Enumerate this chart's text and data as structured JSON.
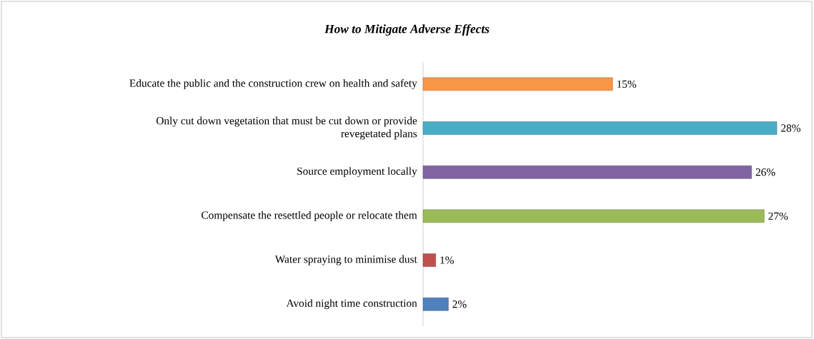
{
  "chart_data": {
    "type": "bar",
    "orientation": "horizontal",
    "title": "How to Mitigate Adverse Effects",
    "categories": [
      "Educate the public and the construction crew on health and safety",
      "Only cut down vegetation that must be cut down or provide revegetated plans",
      "Source employment locally",
      "Compensate the resettled people or relocate them",
      "Water spraying to minimise dust",
      "Avoid night time construction"
    ],
    "values": [
      15,
      28,
      26,
      27,
      1,
      2
    ],
    "colors": [
      "#f79646",
      "#4bacc6",
      "#8064a2",
      "#9bbb59",
      "#c0504d",
      "#4f81bd"
    ],
    "value_labels": [
      "15%",
      "28%",
      "26%",
      "27%",
      "1%",
      "2%"
    ]
  }
}
